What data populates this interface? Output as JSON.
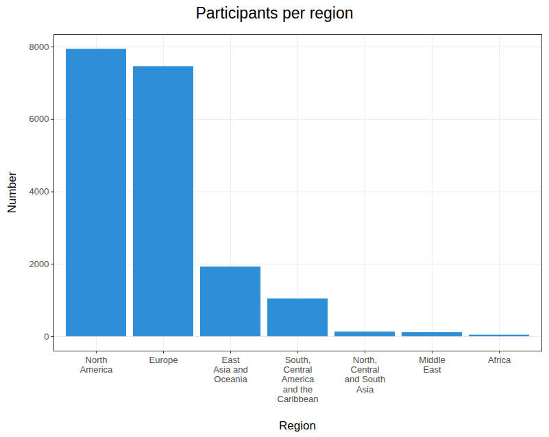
{
  "chart_data": {
    "type": "bar",
    "title": "Participants per region",
    "x_label": "Region",
    "y_label": "Number",
    "categories": [
      "North\nAmerica",
      "Europe",
      "East\nAsia and\nOceania",
      "South,\nCentral\nAmerica\nand the\nCaribbean",
      "North,\nCentral\nand South\nAsia",
      "Middle\nEast",
      "Africa"
    ],
    "values": [
      7940,
      7460,
      1925,
      1047,
      131,
      115,
      45
    ],
    "color": "#2E8FD6",
    "ylim": [
      -397,
      8341
    ],
    "yticks": [
      0,
      2000,
      4000,
      6000,
      8000
    ],
    "grid": true
  }
}
